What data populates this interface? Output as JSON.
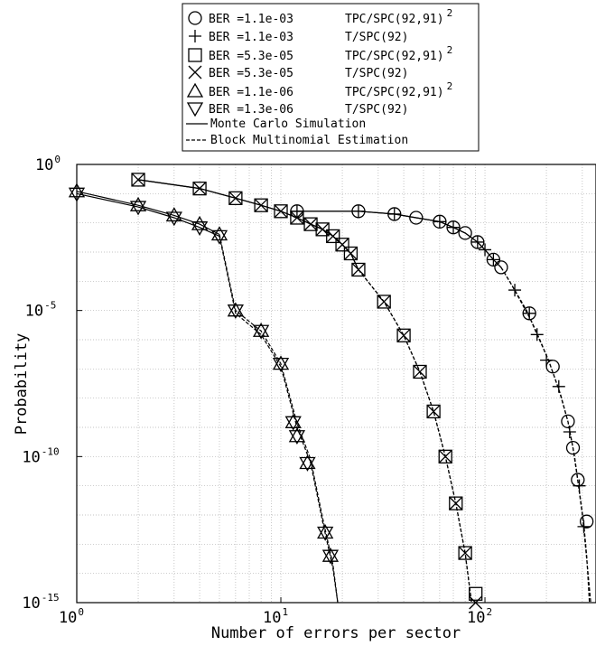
{
  "chart_data": {
    "type": "line",
    "xlabel": "Number of errors per sector",
    "ylabel": "Probability",
    "xscale": "log",
    "yscale": "log",
    "xlim": [
      1,
      350
    ],
    "ylim": [
      1e-15,
      1
    ],
    "grid": true,
    "legend_position": "top-center",
    "x_ticks": [
      {
        "value": 1,
        "base": "10",
        "exp": "0"
      },
      {
        "value": 10,
        "base": "10",
        "exp": "1"
      },
      {
        "value": 100,
        "base": "10",
        "exp": "2"
      }
    ],
    "y_ticks": [
      {
        "value": 1,
        "base": "10",
        "exp": "0"
      },
      {
        "value": 1e-05,
        "base": "10",
        "exp": "-5"
      },
      {
        "value": 1e-10,
        "base": "10",
        "exp": "-10"
      },
      {
        "value": 1e-15,
        "base": "10",
        "exp": "-15"
      }
    ],
    "legend": [
      {
        "marker": "circle",
        "ber": "BER =1.1e-03",
        "code": "TPC/SPC(92,91)",
        "sup": "2"
      },
      {
        "marker": "plus",
        "ber": "BER =1.1e-03",
        "code": "T/SPC(92)",
        "sup": ""
      },
      {
        "marker": "square",
        "ber": "BER =5.3e-05",
        "code": "TPC/SPC(92,91)",
        "sup": "2"
      },
      {
        "marker": "x",
        "ber": "BER =5.3e-05",
        "code": "T/SPC(92)",
        "sup": ""
      },
      {
        "marker": "triangle-up",
        "ber": "BER =1.1e-06",
        "code": "TPC/SPC(92,91)",
        "sup": "2"
      },
      {
        "marker": "triangle-down",
        "ber": "BER =1.3e-06",
        "code": "T/SPC(92)",
        "sup": ""
      }
    ],
    "line_legend": [
      {
        "style": "solid",
        "label": "Monte Carlo Simulation"
      },
      {
        "style": "dashed",
        "label": "Block Multinomial Estimation"
      }
    ],
    "series": [
      {
        "name": "BER =1.1e-03 TPC/SPC(92,91)^2",
        "marker": "circle",
        "solid": [
          [
            12,
            0.025
          ],
          [
            24,
            0.025
          ],
          [
            36,
            0.02
          ],
          [
            46,
            0.015
          ],
          [
            60,
            0.011
          ],
          [
            70,
            0.007
          ],
          [
            80,
            0.0045
          ],
          [
            92,
            0.0022
          ],
          [
            100,
            0.0012
          ],
          [
            110,
            0.00055
          ],
          [
            120,
            0.0003
          ]
        ],
        "dashed": [
          [
            120,
            0.0003
          ],
          [
            132,
            0.0001
          ],
          [
            150,
            2e-05
          ],
          [
            170,
            4e-06
          ],
          [
            190,
            7e-07
          ],
          [
            210,
            1.2e-07
          ],
          [
            235,
            1.3e-08
          ],
          [
            255,
            1.6e-09
          ],
          [
            270,
            2e-10
          ],
          [
            285,
            1.5e-11
          ],
          [
            300,
            1e-12
          ],
          [
            310,
            1e-13
          ],
          [
            320,
            1e-14
          ],
          [
            330,
            1e-15
          ]
        ],
        "markers": [
          [
            12,
            0.025
          ],
          [
            24,
            0.025
          ],
          [
            36,
            0.02
          ],
          [
            46,
            0.015
          ],
          [
            60,
            0.011
          ],
          [
            70,
            0.007
          ],
          [
            80,
            0.0045
          ],
          [
            92,
            0.0022
          ],
          [
            110,
            0.00055
          ],
          [
            120,
            0.0003
          ],
          [
            165,
            8e-06
          ],
          [
            215,
            1.2e-07
          ],
          [
            255,
            1.6e-09
          ],
          [
            270,
            2e-10
          ],
          [
            285,
            1.6e-11
          ],
          [
            315,
            6e-13
          ]
        ]
      },
      {
        "name": "BER =1.1e-03 T/SPC(92)",
        "marker": "plus",
        "solid": [
          [
            12,
            0.025
          ],
          [
            24,
            0.025
          ],
          [
            36,
            0.02
          ],
          [
            46,
            0.015
          ],
          [
            60,
            0.011
          ],
          [
            70,
            0.007
          ],
          [
            80,
            0.0045
          ],
          [
            92,
            0.0022
          ],
          [
            100,
            0.0012
          ],
          [
            110,
            0.00055
          ],
          [
            120,
            0.0003
          ]
        ],
        "dashed": [
          [
            120,
            0.0003
          ],
          [
            140,
            5e-05
          ],
          [
            160,
            1e-05
          ],
          [
            180,
            1.5e-06
          ],
          [
            205,
            2e-07
          ],
          [
            230,
            2e-08
          ],
          [
            255,
            1.6e-09
          ],
          [
            275,
            1e-10
          ],
          [
            290,
            7e-12
          ],
          [
            305,
            5e-13
          ],
          [
            315,
            4e-14
          ],
          [
            325,
            1e-15
          ]
        ],
        "markers": [
          [
            12,
            0.025
          ],
          [
            24,
            0.025
          ],
          [
            36,
            0.02
          ],
          [
            60,
            0.011
          ],
          [
            70,
            0.007
          ],
          [
            92,
            0.0022
          ],
          [
            100,
            0.0012
          ],
          [
            110,
            0.00055
          ],
          [
            140,
            5e-05
          ],
          [
            165,
            8e-06
          ],
          [
            180,
            1.5e-06
          ],
          [
            200,
            2e-07
          ],
          [
            230,
            2.5e-08
          ],
          [
            260,
            7e-10
          ],
          [
            290,
            1e-11
          ],
          [
            305,
            4e-13
          ]
        ]
      },
      {
        "name": "BER =5.3e-05 TPC/SPC(92,91)^2",
        "marker": "square",
        "solid": [
          [
            2,
            0.3
          ],
          [
            4,
            0.15
          ],
          [
            6,
            0.07
          ],
          [
            8,
            0.04
          ],
          [
            10,
            0.025
          ],
          [
            12,
            0.015
          ],
          [
            14,
            0.009
          ],
          [
            16,
            0.006
          ],
          [
            18,
            0.0035
          ],
          [
            20,
            0.0018
          ],
          [
            22,
            0.0009
          ],
          [
            24,
            0.00025
          ]
        ],
        "dashed": [
          [
            24,
            0.00025
          ],
          [
            32,
            2e-05
          ],
          [
            40,
            1.4e-06
          ],
          [
            48,
            8e-08
          ],
          [
            56,
            3.5e-09
          ],
          [
            64,
            1e-10
          ],
          [
            72,
            2.5e-12
          ],
          [
            80,
            5e-14
          ],
          [
            86,
            1e-15
          ]
        ],
        "markers": [
          [
            2,
            0.3
          ],
          [
            4,
            0.15
          ],
          [
            6,
            0.07
          ],
          [
            8,
            0.04
          ],
          [
            10,
            0.025
          ],
          [
            12,
            0.015
          ],
          [
            14,
            0.009
          ],
          [
            16,
            0.006
          ],
          [
            18,
            0.0035
          ],
          [
            20,
            0.0018
          ],
          [
            22,
            0.0009
          ],
          [
            24,
            0.00025
          ],
          [
            32,
            2e-05
          ],
          [
            40,
            1.4e-06
          ],
          [
            48,
            8e-08
          ],
          [
            56,
            3.5e-09
          ],
          [
            64,
            1e-10
          ],
          [
            72,
            2.5e-12
          ],
          [
            80,
            5e-14
          ],
          [
            90,
            2e-15
          ]
        ]
      },
      {
        "name": "BER =5.3e-05 T/SPC(92)",
        "marker": "x",
        "solid": [
          [
            2,
            0.3
          ],
          [
            4,
            0.15
          ],
          [
            6,
            0.07
          ],
          [
            8,
            0.04
          ],
          [
            10,
            0.025
          ],
          [
            12,
            0.015
          ],
          [
            14,
            0.009
          ],
          [
            16,
            0.006
          ],
          [
            18,
            0.0035
          ],
          [
            20,
            0.0018
          ],
          [
            22,
            0.0009
          ],
          [
            24,
            0.00025
          ]
        ],
        "dashed": [
          [
            24,
            0.00025
          ],
          [
            32,
            2e-05
          ],
          [
            40,
            1.4e-06
          ],
          [
            48,
            8e-08
          ],
          [
            56,
            3.5e-09
          ],
          [
            64,
            1e-10
          ],
          [
            72,
            2.5e-12
          ],
          [
            80,
            5e-14
          ],
          [
            86,
            1e-15
          ]
        ],
        "markers": [
          [
            2,
            0.3
          ],
          [
            4,
            0.15
          ],
          [
            6,
            0.07
          ],
          [
            8,
            0.04
          ],
          [
            10,
            0.025
          ],
          [
            12,
            0.015
          ],
          [
            14,
            0.009
          ],
          [
            16,
            0.006
          ],
          [
            18,
            0.0035
          ],
          [
            20,
            0.0018
          ],
          [
            22,
            0.0009
          ],
          [
            24,
            0.00025
          ],
          [
            32,
            2e-05
          ],
          [
            40,
            1.4e-06
          ],
          [
            48,
            8e-08
          ],
          [
            56,
            3.5e-09
          ],
          [
            64,
            1e-10
          ],
          [
            72,
            2.5e-12
          ],
          [
            80,
            5e-14
          ],
          [
            90,
            1e-15
          ]
        ]
      },
      {
        "name": "BER =1.1e-06 TPC/SPC(92,91)^2",
        "marker": "triangle-up",
        "solid": [
          [
            1,
            0.12
          ],
          [
            2,
            0.04
          ],
          [
            3,
            0.018
          ],
          [
            4,
            0.009
          ],
          [
            5,
            0.004
          ]
        ],
        "dashed": [
          [
            5,
            0.004
          ],
          [
            6,
            1e-05
          ],
          [
            8,
            2e-06
          ],
          [
            10,
            1.5e-07
          ],
          [
            12,
            1.4e-09
          ],
          [
            14,
            8e-11
          ],
          [
            16,
            8e-13
          ],
          [
            18,
            2e-14
          ],
          [
            19,
            1e-15
          ]
        ],
        "markers": [
          [
            1,
            0.12
          ],
          [
            2,
            0.04
          ],
          [
            3,
            0.018
          ],
          [
            4,
            0.009
          ],
          [
            5,
            0.004
          ],
          [
            6,
            1e-05
          ],
          [
            8,
            2e-06
          ],
          [
            10,
            1.5e-07
          ],
          [
            11.5,
            1.5e-09
          ],
          [
            12,
            5e-10
          ],
          [
            13.5,
            6e-11
          ],
          [
            16.5,
            2.5e-13
          ],
          [
            17.5,
            4e-14
          ]
        ]
      },
      {
        "name": "BER =1.3e-06 T/SPC(92)",
        "marker": "triangle-down",
        "solid": [
          [
            1,
            0.1
          ],
          [
            2,
            0.035
          ],
          [
            3,
            0.015
          ],
          [
            4,
            0.007
          ],
          [
            5,
            0.0035
          ]
        ],
        "dashed": [
          [
            5,
            0.0035
          ],
          [
            6,
            8e-06
          ],
          [
            8,
            1.5e-06
          ],
          [
            10,
            1.2e-07
          ],
          [
            12,
            1e-09
          ],
          [
            14,
            6e-11
          ],
          [
            16,
            6e-13
          ],
          [
            18,
            1.5e-14
          ],
          [
            19,
            1e-15
          ]
        ],
        "markers": [
          [
            1,
            0.1
          ],
          [
            2,
            0.035
          ],
          [
            3,
            0.015
          ],
          [
            4,
            0.007
          ],
          [
            5,
            0.0035
          ],
          [
            6,
            1e-05
          ],
          [
            8,
            2e-06
          ],
          [
            10,
            1.5e-07
          ],
          [
            11.5,
            1.5e-09
          ],
          [
            12,
            5e-10
          ],
          [
            13.5,
            6e-11
          ],
          [
            16.5,
            2.5e-13
          ],
          [
            17.5,
            4e-14
          ]
        ]
      }
    ]
  }
}
